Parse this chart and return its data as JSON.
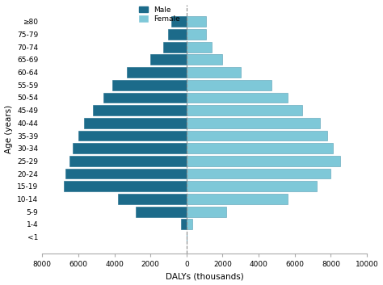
{
  "age_groups": [
    "<1",
    "1-4",
    "5-9",
    "10-14",
    "15-19",
    "20-24",
    "25-29",
    "30-34",
    "35-39",
    "40-44",
    "45-49",
    "50-54",
    "55-59",
    "60-64",
    "65-69",
    "70-74",
    "75-79",
    "≥80"
  ],
  "male": [
    0,
    300,
    2800,
    3800,
    6800,
    6700,
    6500,
    6300,
    6000,
    5700,
    5200,
    4600,
    4100,
    3300,
    2000,
    1300,
    1000,
    850
  ],
  "female": [
    0,
    300,
    2200,
    5600,
    7200,
    8000,
    8500,
    8100,
    7800,
    7400,
    6400,
    5600,
    4700,
    3000,
    2000,
    1400,
    1100,
    1100
  ],
  "male_color": "#1c6b8a",
  "female_color": "#7ec8d8",
  "male_edge": "#1c6b8a",
  "female_edge": "#5a9fb5",
  "xlabel": "DALYs (thousands)",
  "ylabel": "Age (years)",
  "xlim": [
    -8000,
    10000
  ],
  "xticks": [
    -8000,
    -6000,
    -4000,
    -2000,
    0,
    2000,
    4000,
    6000,
    8000,
    10000
  ],
  "xticklabels": [
    "8000",
    "6000",
    "4000",
    "2000",
    "0",
    "2000",
    "4000",
    "6000",
    "8000",
    "10000"
  ],
  "background_color": "#ffffff",
  "bar_height": 0.82,
  "legend_male": "Male",
  "legend_female": "Female"
}
